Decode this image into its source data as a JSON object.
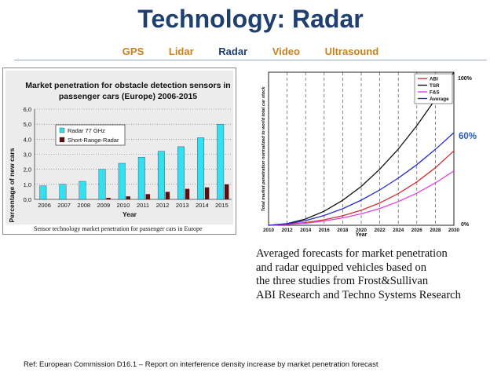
{
  "slide": {
    "title": "Technology: Radar",
    "nav": [
      {
        "label": "GPS",
        "color": "#c7821e"
      },
      {
        "label": "Lidar",
        "color": "#c7821e"
      },
      {
        "label": "Radar",
        "color": "#1f3f6e"
      },
      {
        "label": "Video",
        "color": "#c7821e"
      },
      {
        "label": "Ultrasound",
        "color": "#c7821e"
      }
    ],
    "caption": [
      "Averaged forecasts for market penetration",
      "and radar equipped vehicles based on",
      "the  three  studies  from  Frost&Sullivan",
      "ABI  Research  and  Techno  Systems Research"
    ],
    "reference": "Ref: European Commission D16.1 – Report on interference density increase by market penetration forecast"
  },
  "chart_data": [
    {
      "type": "bar",
      "title": "Market penetration for obstacle detection sensors in passenger cars (Europe) 2006-2015",
      "xlabel": "Year",
      "ylabel": "Percentage of new cars",
      "caption": "Sensor technology market penetration for passenger cars in Europe",
      "categories": [
        "2006",
        "2007",
        "2008",
        "2009",
        "2010",
        "2011",
        "2012",
        "2013",
        "2014",
        "2015"
      ],
      "ylim": [
        0,
        6
      ],
      "yticks": [
        "0,0",
        "1,0",
        "2,0",
        "3,0",
        "4,0",
        "5,0",
        "6,0"
      ],
      "legend_position": "top-left",
      "grid": "horizontal-dotted",
      "series": [
        {
          "name": "Radar 77 GHz",
          "color": "#33e0f0",
          "values": [
            0.9,
            1.0,
            1.2,
            2.0,
            2.4,
            2.8,
            3.2,
            3.5,
            4.1,
            5.0
          ]
        },
        {
          "name": "Short-Range-Radar",
          "color": "#5a1010",
          "values": [
            0,
            0,
            0,
            0.1,
            0.2,
            0.35,
            0.5,
            0.7,
            0.8,
            1.0
          ]
        }
      ]
    },
    {
      "type": "line",
      "xlabel": "Year",
      "ylabel": "Total market penetration normalized to world total car stock",
      "x": [
        "2010",
        "2012",
        "2014",
        "2016",
        "2018",
        "2020",
        "2022",
        "2024",
        "2026",
        "2028",
        "2030"
      ],
      "ylim": [
        0,
        100
      ],
      "right_labels": [
        "100%",
        "0%"
      ],
      "annotation": "60%",
      "annotation_color": "#1f5fc0",
      "legend_position": "top-left",
      "grid": "vertical-dashed",
      "series": [
        {
          "name": "ABI",
          "color": "#d03030",
          "values": [
            0,
            0.6,
            1.8,
            3.6,
            6.2,
            9.8,
            14.6,
            20.7,
            28.3,
            37.6,
            48.6
          ]
        },
        {
          "name": "TSR",
          "color": "#111111",
          "values": [
            0,
            1.1,
            4.1,
            9.2,
            16.3,
            25.4,
            36.6,
            49.8,
            65.1,
            82.3,
            100
          ]
        },
        {
          "name": "F&S",
          "color": "#e040e0",
          "values": [
            0,
            0.5,
            1.4,
            2.8,
            4.8,
            7.5,
            11.0,
            15.5,
            21.0,
            27.7,
            35.5
          ]
        },
        {
          "name": "Average",
          "color": "#2a2ad0",
          "values": [
            0,
            0.9,
            3.1,
            6.4,
            10.8,
            16.4,
            23.1,
            30.8,
            39.6,
            49.6,
            60.5
          ]
        }
      ]
    }
  ]
}
